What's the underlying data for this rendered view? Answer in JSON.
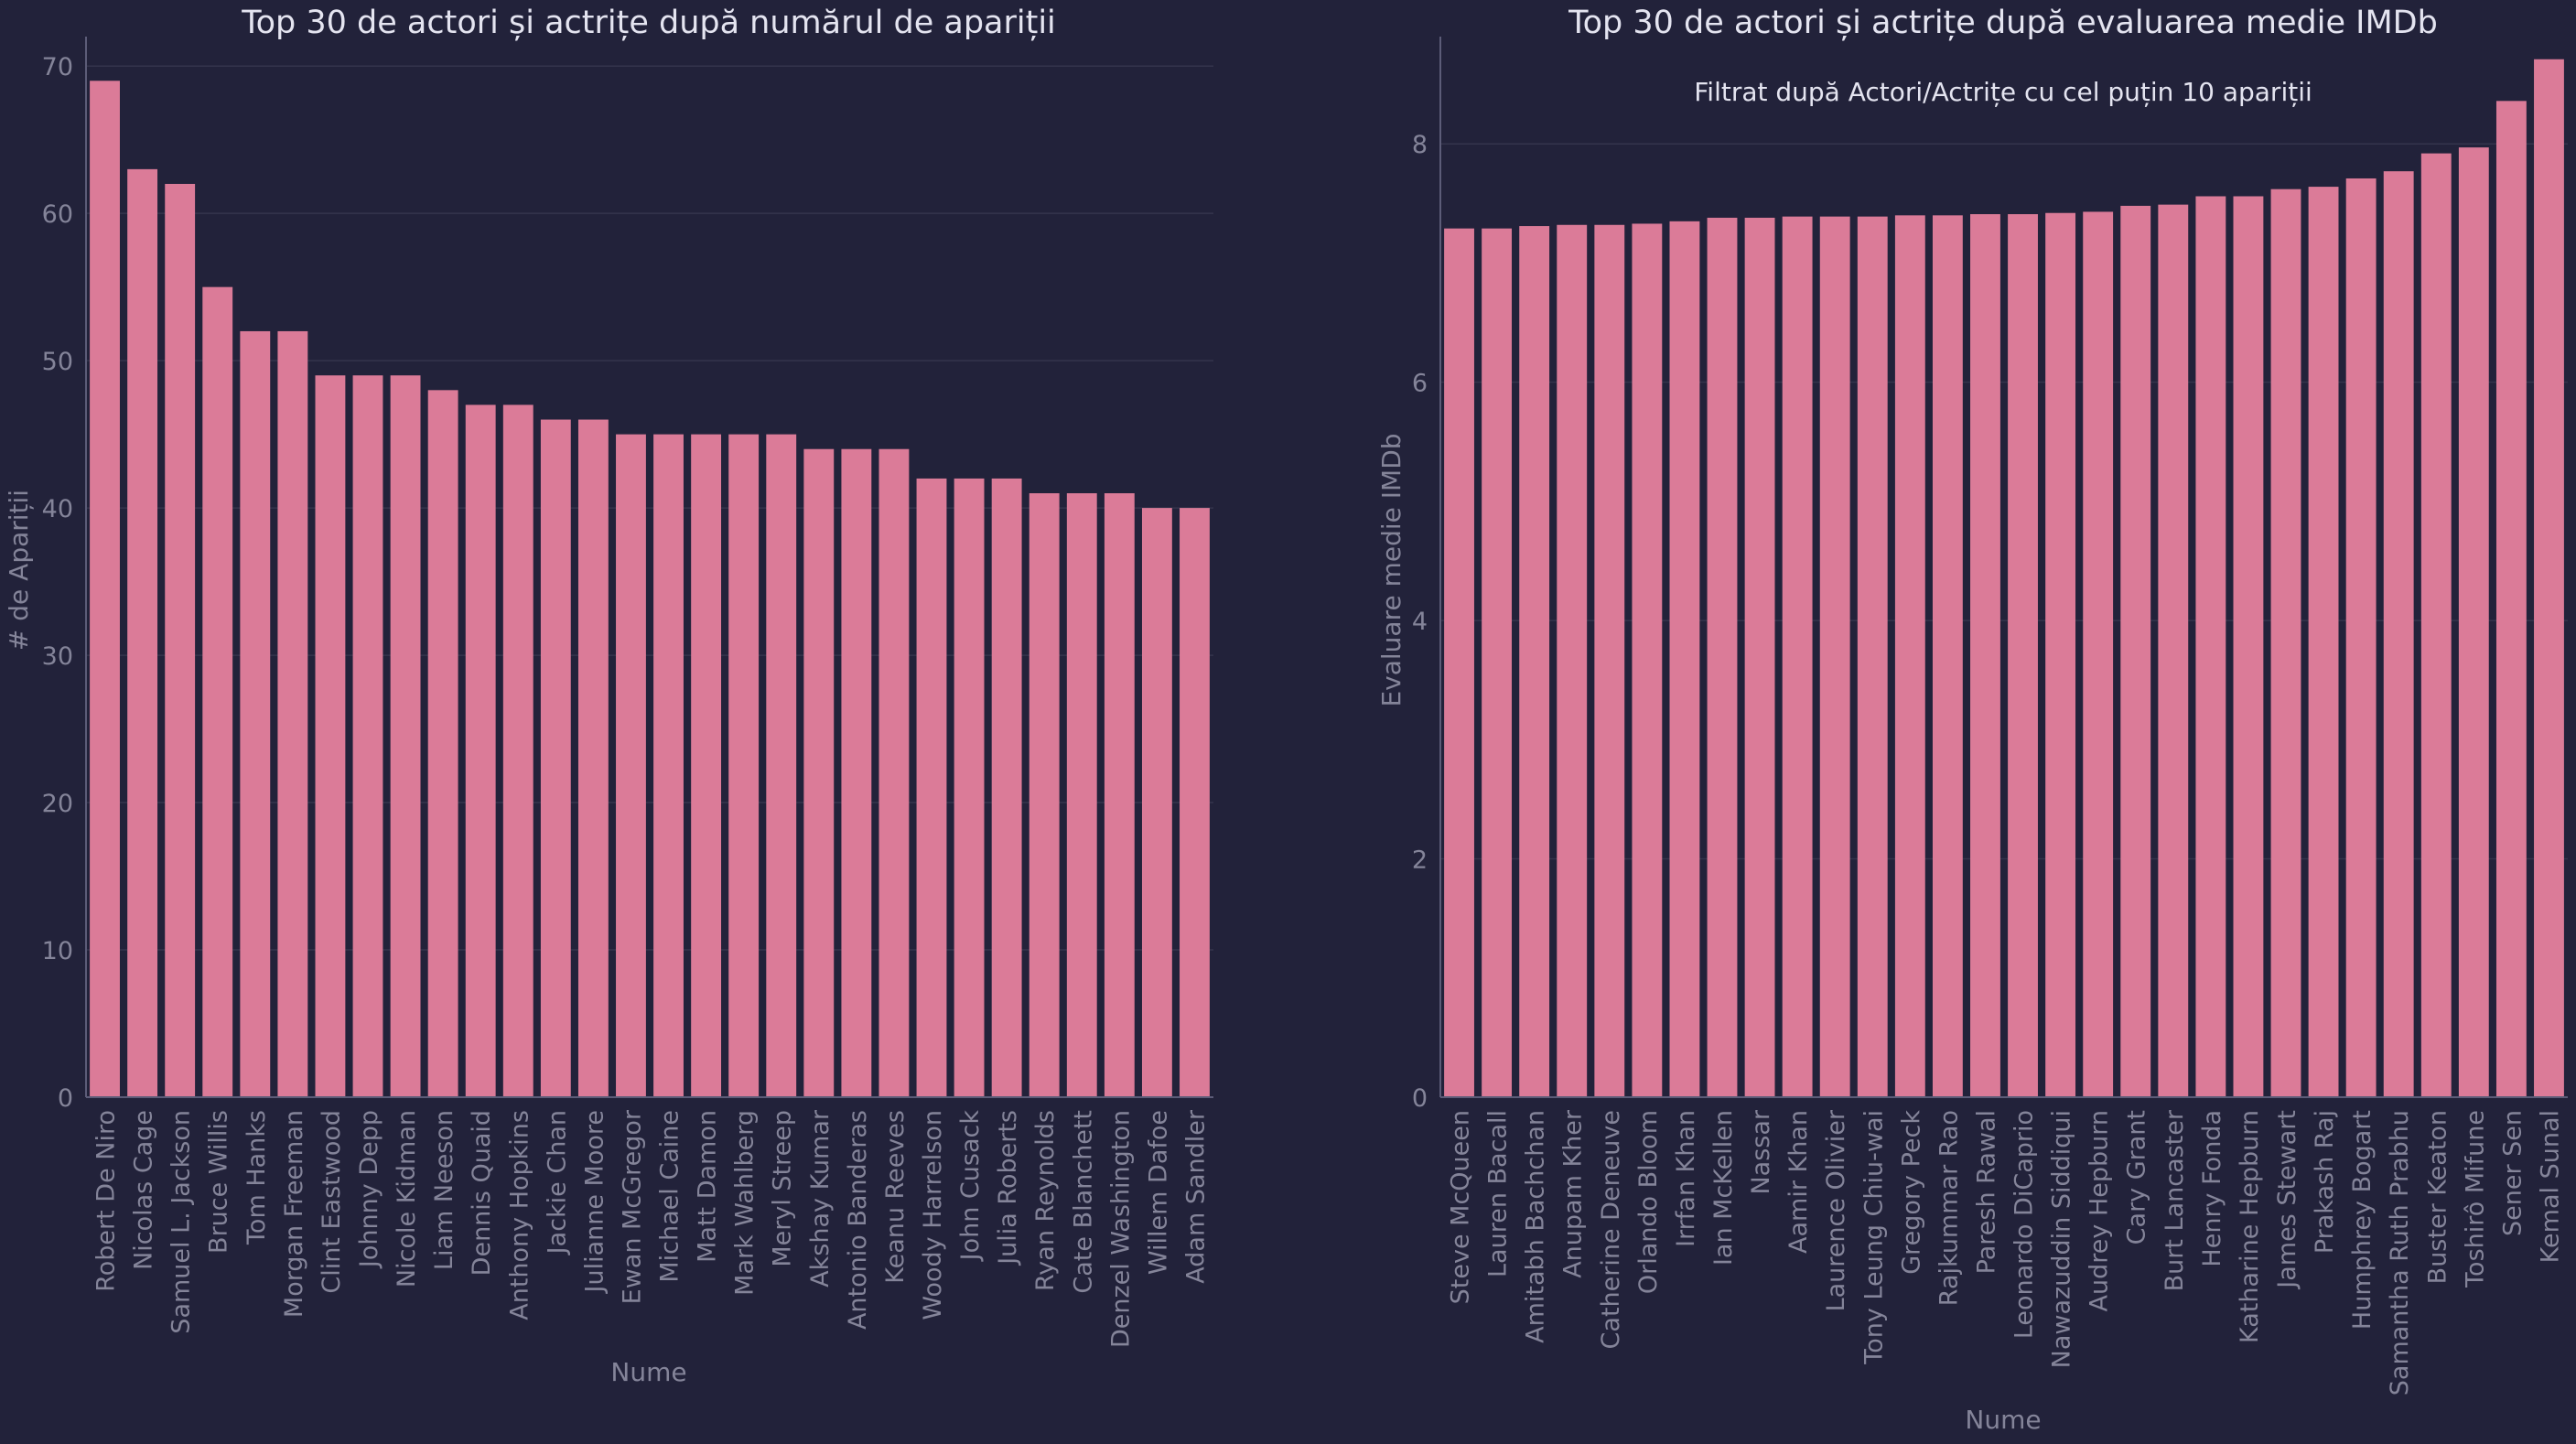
{
  "theme": {
    "background": "#22223a",
    "bar_color": "#db7b98",
    "grid_color": "#34344c",
    "axis_color": "#5c5c78",
    "title_color": "#e4e4f0",
    "label_color": "#848499"
  },
  "chart_data": [
    {
      "type": "bar",
      "title": "Top 30 de actori și actrițe după numărul de apariții",
      "subtitle": "",
      "xlabel": "Nume",
      "ylabel": "# de Apariții",
      "ylim": [
        0,
        72
      ],
      "yticks": [
        0,
        10,
        20,
        30,
        40,
        50,
        60,
        70
      ],
      "grid": "horizontal",
      "categories": [
        "Robert De Niro",
        "Nicolas Cage",
        "Samuel L. Jackson",
        "Bruce Willis",
        "Tom Hanks",
        "Morgan Freeman",
        "Clint Eastwood",
        "Johnny Depp",
        "Nicole Kidman",
        "Liam Neeson",
        "Dennis Quaid",
        "Anthony Hopkins",
        "Jackie Chan",
        "Julianne Moore",
        "Ewan McGregor",
        "Michael Caine",
        "Matt Damon",
        "Mark Wahlberg",
        "Meryl Streep",
        "Akshay Kumar",
        "Antonio Banderas",
        "Keanu Reeves",
        "Woody Harrelson",
        "John Cusack",
        "Julia Roberts",
        "Ryan Reynolds",
        "Cate Blanchett",
        "Denzel Washington",
        "Willem Dafoe",
        "Adam Sandler"
      ],
      "values": [
        69,
        63,
        62,
        55,
        52,
        52,
        49,
        49,
        49,
        48,
        47,
        47,
        46,
        46,
        45,
        45,
        45,
        45,
        45,
        44,
        44,
        44,
        42,
        42,
        42,
        41,
        41,
        41,
        40,
        40
      ]
    },
    {
      "type": "bar",
      "title": "Top 30 de actori și actrițe după evaluarea medie IMDb",
      "subtitle": "Filtrat după Actori/Actrițe cu cel puțin 10 apariții",
      "xlabel": "Nume",
      "ylabel": "Evaluare medie IMDb",
      "ylim": [
        0,
        8.9
      ],
      "yticks": [
        0,
        2,
        4,
        6,
        8
      ],
      "grid": "horizontal",
      "categories": [
        "Steve McQueen",
        "Lauren Bacall",
        "Amitabh Bachchan",
        "Anupam Kher",
        "Catherine Deneuve",
        "Orlando Bloom",
        "Irrfan Khan",
        "Ian McKellen",
        "Nassar",
        "Aamir Khan",
        "Laurence Olivier",
        "Tony Leung Chiu-wai",
        "Gregory Peck",
        "Rajkummar Rao",
        "Paresh Rawal",
        "Leonardo DiCaprio",
        "Nawazuddin Siddiqui",
        "Audrey Hepburn",
        "Cary Grant",
        "Burt Lancaster",
        "Henry Fonda",
        "Katharine Hepburn",
        "James Stewart",
        "Prakash Raj",
        "Humphrey Bogart",
        "Samantha Ruth Prabhu",
        "Buster Keaton",
        "Toshirô Mifune",
        "Sener Sen",
        "Kemal Sunal"
      ],
      "values": [
        7.29,
        7.29,
        7.31,
        7.32,
        7.32,
        7.33,
        7.35,
        7.38,
        7.38,
        7.39,
        7.39,
        7.39,
        7.4,
        7.4,
        7.41,
        7.41,
        7.42,
        7.43,
        7.48,
        7.49,
        7.56,
        7.56,
        7.62,
        7.64,
        7.71,
        7.77,
        7.92,
        7.97,
        8.36,
        8.71
      ]
    }
  ]
}
